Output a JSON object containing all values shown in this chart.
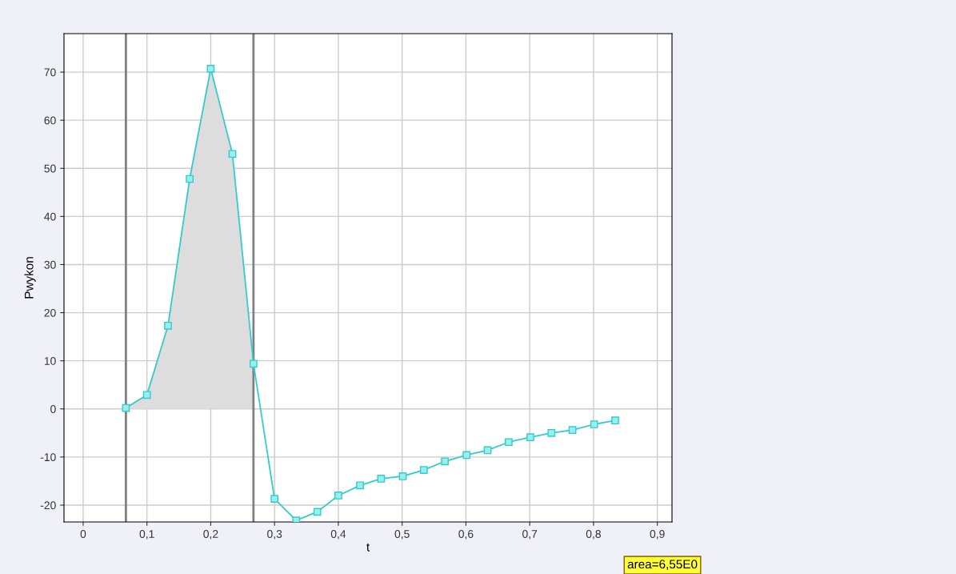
{
  "chart_data": {
    "type": "line",
    "xlabel": "t",
    "ylabel": "Pwykon",
    "x": [
      0.067,
      0.1,
      0.133,
      0.167,
      0.2,
      0.234,
      0.267,
      0.3,
      0.334,
      0.367,
      0.4,
      0.434,
      0.467,
      0.501,
      0.534,
      0.567,
      0.601,
      0.634,
      0.667,
      0.701,
      0.734,
      0.767,
      0.801,
      0.834
    ],
    "series": [
      {
        "type": "area",
        "color": "#dddddd",
        "marker": "none",
        "x": [
          0.067,
          0.1,
          0.133,
          0.167,
          0.2,
          0.234,
          0.267
        ],
        "values": [
          0.2,
          2.9,
          17.3,
          47.8,
          70.7,
          53.0,
          9.4
        ]
      },
      {
        "color": "#33cccc",
        "marker": "square",
        "values": [
          0.2,
          2.9,
          17.3,
          47.8,
          70.7,
          53.0,
          9.4,
          -18.7,
          -23.2,
          -21.4,
          -18.0,
          -15.9,
          -14.5,
          -14.0,
          -12.7,
          -10.9,
          -9.6,
          -8.6,
          -6.9,
          -5.9,
          -5.0,
          -4.4,
          -3.2,
          -2.4
        ]
      }
    ],
    "ref_lines": [
      {
        "axis": "x",
        "value": 0.067,
        "color": "#808080"
      },
      {
        "axis": "x",
        "value": 0.267,
        "color": "#808080"
      }
    ],
    "xlim": [
      -0.03,
      0.923
    ],
    "xticks": [
      0,
      {
        "value": 0.1,
        "label": "0,1"
      },
      {
        "value": 0.2,
        "label": "0,2"
      },
      {
        "value": 0.3,
        "label": "0,3"
      },
      {
        "value": 0.4,
        "label": "0,4"
      },
      {
        "value": 0.5,
        "label": "0,5"
      },
      {
        "value": 0.6,
        "label": "0,6"
      },
      {
        "value": 0.7,
        "label": "0,7"
      },
      {
        "value": 0.8,
        "label": "0,8"
      },
      {
        "value": 0.9,
        "label": "0,9"
      }
    ],
    "ylim": [
      -23.5,
      78
    ],
    "yticks": [
      -20,
      -10,
      0,
      10,
      20,
      30,
      40,
      50,
      60,
      70
    ],
    "grid": true,
    "line_style": "solid",
    "annotations": [
      "area=6,55E0"
    ]
  }
}
